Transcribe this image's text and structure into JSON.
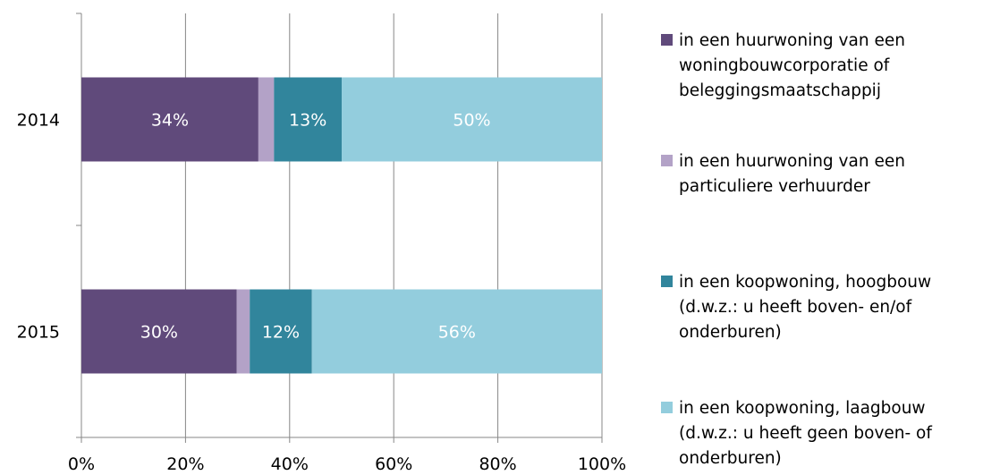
{
  "chart_data": {
    "type": "bar",
    "orientation": "horizontal",
    "stacked": "percent",
    "categories": [
      "2014",
      "2015"
    ],
    "series": [
      {
        "name": "in een huurwoning van een\nwoningbouwcorporatie of\nbeleggingsmaatschappij",
        "color": "#604a7b",
        "values": [
          34,
          30
        ],
        "labels": [
          "34%",
          "30%"
        ]
      },
      {
        "name": " in een huurwoning van een\nparticuliere verhuurder",
        "color": "#b3a2c7",
        "values": [
          3,
          2.5
        ],
        "labels": [
          "",
          ""
        ]
      },
      {
        "name": "in een koopwoning, hoogbouw\n(d.w.z.: u heeft boven- en/of\nonderburen)",
        "color": "#31859c",
        "values": [
          13,
          12
        ],
        "labels": [
          "13%",
          "12%"
        ]
      },
      {
        "name": "in een koopwoning, laagbouw\n(d.w.z.: u heeft geen boven- of\nonderburen)",
        "color": "#93cddd",
        "values": [
          50,
          56
        ],
        "labels": [
          "50%",
          "56%"
        ]
      }
    ],
    "xlim": [
      0,
      100
    ],
    "xticks": [
      "0%",
      "20%",
      "40%",
      "60%",
      "80%",
      "100%"
    ],
    "grid": true,
    "legend_position": "right"
  }
}
